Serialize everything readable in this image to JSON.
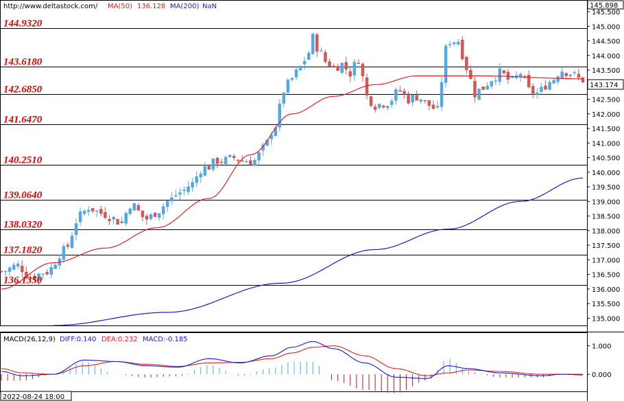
{
  "header": {
    "url": "http://www.deltastock.com/",
    "ma50_label": "MA(50)",
    "ma50_value": "136.128",
    "ma200_label": "MA(200)",
    "ma200_value": "NaN"
  },
  "current_price": "143.174",
  "top_price": "145.898",
  "macd_header": {
    "name": "MACD(26,12,9)",
    "diff": "DIFF:0.140",
    "dea": "DEA:0.232",
    "macd": "MACD:-0.185"
  },
  "date_label": "2022-08-24 18:00",
  "colors": {
    "up": "#52a8e0",
    "down": "#d05858",
    "ma50": "#e02020",
    "ma200": "#1a1ad0",
    "level_text": "#e00000",
    "diff": "#1a1ad0",
    "dea": "#e02020"
  },
  "chart_data": [
    {
      "type": "candlestick",
      "ylim": [
        134.75,
        145.9
      ],
      "yticks": [
        "135.000",
        "135.500",
        "136.000",
        "136.500",
        "137.000",
        "137.500",
        "138.000",
        "138.500",
        "139.000",
        "139.500",
        "140.000",
        "140.500",
        "141.000",
        "141.500",
        "142.000",
        "142.500",
        "143.000",
        "143.500",
        "144.000",
        "144.500",
        "145.000",
        "145.500"
      ],
      "levels": [
        "144.9320",
        "143.6180",
        "142.6850",
        "141.6470",
        "140.2510",
        "139.0640",
        "138.0320",
        "137.1820",
        "136.1350"
      ],
      "series": [
        {
          "name": "MA(50)",
          "anchors": [
            [
              0,
              136.0
            ],
            [
              25,
              136.9
            ],
            [
              50,
              137.4
            ],
            [
              75,
              138.1
            ],
            [
              100,
              139.1
            ],
            [
              120,
              140.6
            ],
            [
              140,
              142.0
            ],
            [
              160,
              142.6
            ],
            [
              180,
              143.0
            ],
            [
              200,
              143.3
            ],
            [
              230,
              143.3
            ],
            [
              280,
              143.2
            ]
          ]
        },
        {
          "name": "MA(200)",
          "anchors": [
            [
              25,
              134.75
            ],
            [
              80,
              135.2
            ],
            [
              135,
              136.2
            ],
            [
              180,
              137.35
            ],
            [
              215,
              138.05
            ],
            [
              250,
              139.0
            ],
            [
              280,
              139.8
            ]
          ]
        }
      ],
      "close_anchors": [
        [
          0,
          136.6
        ],
        [
          8,
          136.8
        ],
        [
          14,
          136.4
        ],
        [
          22,
          136.6
        ],
        [
          30,
          137.3
        ],
        [
          38,
          138.5
        ],
        [
          42,
          138.8
        ],
        [
          48,
          138.6
        ],
        [
          58,
          138.3
        ],
        [
          62,
          138.9
        ],
        [
          70,
          138.4
        ],
        [
          76,
          138.7
        ],
        [
          80,
          139.0
        ],
        [
          86,
          139.3
        ],
        [
          92,
          139.6
        ],
        [
          96,
          140.1
        ],
        [
          100,
          140.2
        ],
        [
          104,
          140.4
        ],
        [
          108,
          140.4
        ],
        [
          112,
          140.5
        ],
        [
          116,
          140.4
        ],
        [
          122,
          140.4
        ],
        [
          126,
          140.8
        ],
        [
          132,
          141.6
        ],
        [
          136,
          142.8
        ],
        [
          140,
          143.2
        ],
        [
          144,
          143.6
        ],
        [
          148,
          144.1
        ],
        [
          150,
          144.6
        ],
        [
          152,
          144.3
        ],
        [
          156,
          143.8
        ],
        [
          160,
          143.6
        ],
        [
          164,
          143.7
        ],
        [
          168,
          143.4
        ],
        [
          172,
          143.9
        ],
        [
          176,
          142.6
        ],
        [
          180,
          142.3
        ],
        [
          186,
          142.4
        ],
        [
          192,
          142.8
        ],
        [
          196,
          142.5
        ],
        [
          200,
          142.6
        ],
        [
          206,
          142.3
        ],
        [
          210,
          142.1
        ],
        [
          214,
          144.2
        ],
        [
          216,
          144.5
        ],
        [
          220,
          144.5
        ],
        [
          224,
          143.6
        ],
        [
          228,
          142.7
        ],
        [
          232,
          142.9
        ],
        [
          236,
          143.2
        ],
        [
          240,
          143.4
        ],
        [
          246,
          143.1
        ],
        [
          250,
          143.4
        ],
        [
          254,
          142.8
        ],
        [
          258,
          142.7
        ],
        [
          264,
          143.1
        ],
        [
          270,
          143.5
        ],
        [
          274,
          143.4
        ],
        [
          278,
          143.2
        ],
        [
          280,
          143.17
        ]
      ]
    },
    {
      "type": "macd",
      "name": "MACD(26,12,9)",
      "ylim": [
        -0.6,
        1.45
      ],
      "yticks": [
        "1.000",
        "0.000"
      ],
      "series": [
        {
          "name": "DIFF",
          "anchors": [
            [
              0,
              0.1
            ],
            [
              10,
              -0.05
            ],
            [
              25,
              0.0
            ],
            [
              40,
              0.5
            ],
            [
              55,
              0.45
            ],
            [
              70,
              0.3
            ],
            [
              85,
              0.25
            ],
            [
              100,
              0.55
            ],
            [
              115,
              0.4
            ],
            [
              130,
              0.65
            ],
            [
              140,
              0.95
            ],
            [
              150,
              1.15
            ],
            [
              160,
              0.9
            ],
            [
              175,
              0.4
            ],
            [
              190,
              -0.1
            ],
            [
              205,
              -0.15
            ],
            [
              215,
              0.3
            ],
            [
              225,
              0.2
            ],
            [
              240,
              0.05
            ],
            [
              260,
              -0.05
            ],
            [
              270,
              0.0
            ],
            [
              280,
              -0.02
            ]
          ]
        },
        {
          "name": "DEA",
          "anchors": [
            [
              0,
              0.2
            ],
            [
              10,
              0.05
            ],
            [
              25,
              0.0
            ],
            [
              40,
              0.3
            ],
            [
              55,
              0.45
            ],
            [
              70,
              0.35
            ],
            [
              85,
              0.28
            ],
            [
              100,
              0.4
            ],
            [
              115,
              0.42
            ],
            [
              130,
              0.55
            ],
            [
              140,
              0.75
            ],
            [
              150,
              0.95
            ],
            [
              160,
              1.0
            ],
            [
              175,
              0.65
            ],
            [
              190,
              0.2
            ],
            [
              205,
              -0.05
            ],
            [
              215,
              0.05
            ],
            [
              225,
              0.15
            ],
            [
              240,
              0.1
            ],
            [
              260,
              0.0
            ],
            [
              270,
              0.0
            ],
            [
              280,
              0.0
            ]
          ]
        }
      ]
    }
  ]
}
